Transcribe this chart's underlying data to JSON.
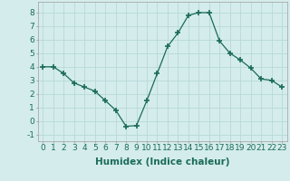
{
  "x": [
    0,
    1,
    2,
    3,
    4,
    5,
    6,
    7,
    8,
    9,
    10,
    11,
    12,
    13,
    14,
    15,
    16,
    17,
    18,
    19,
    20,
    21,
    22,
    23
  ],
  "y": [
    4,
    4,
    3.5,
    2.8,
    2.5,
    2.2,
    1.5,
    0.8,
    -0.4,
    -0.35,
    1.5,
    3.5,
    5.5,
    6.5,
    7.8,
    8.0,
    8.0,
    5.9,
    5.0,
    4.5,
    3.9,
    3.1,
    3.0,
    2.5
  ],
  "line_color": "#1a6b5a",
  "marker": "+",
  "marker_size": 4,
  "bg_color": "#d4ecec",
  "grid_color": "#b8d8d8",
  "xlabel": "Humidex (Indice chaleur)",
  "xlim": [
    -0.5,
    23.5
  ],
  "ylim": [
    -1.5,
    8.8
  ],
  "yticks": [
    -1,
    0,
    1,
    2,
    3,
    4,
    5,
    6,
    7,
    8
  ],
  "xticks": [
    0,
    1,
    2,
    3,
    4,
    5,
    6,
    7,
    8,
    9,
    10,
    11,
    12,
    13,
    14,
    15,
    16,
    17,
    18,
    19,
    20,
    21,
    22,
    23
  ],
  "xlabel_fontsize": 7.5,
  "tick_fontsize": 6.5
}
